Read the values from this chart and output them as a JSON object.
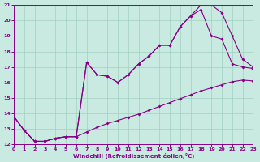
{
  "xlabel": "Windchill (Refroidissement éolien,°C)",
  "bg_color": "#c8eae0",
  "grid_color": "#a0cfc0",
  "line_color": "#880088",
  "xlim": [
    0,
    23
  ],
  "ylim": [
    12,
    21
  ],
  "xticks": [
    0,
    1,
    2,
    3,
    4,
    5,
    6,
    7,
    8,
    9,
    10,
    11,
    12,
    13,
    14,
    15,
    16,
    17,
    18,
    19,
    20,
    21,
    22,
    23
  ],
  "yticks": [
    12,
    13,
    14,
    15,
    16,
    17,
    18,
    19,
    20,
    21
  ],
  "line_bottom_x": [
    0,
    1,
    2,
    3,
    4,
    5,
    6,
    7,
    8,
    9,
    10,
    11,
    12,
    13,
    14,
    15,
    16,
    17,
    18,
    19,
    20,
    21,
    22,
    23
  ],
  "line_bottom_y": [
    13.8,
    12.9,
    12.2,
    12.2,
    12.4,
    12.5,
    12.5,
    12.8,
    13.1,
    13.35,
    13.55,
    13.75,
    13.95,
    14.2,
    14.45,
    14.7,
    14.95,
    15.2,
    15.45,
    15.65,
    15.85,
    16.05,
    16.15,
    16.1
  ],
  "line_mid_x": [
    0,
    1,
    2,
    3,
    4,
    5,
    6,
    7,
    8,
    9,
    10,
    11,
    12,
    13,
    14,
    15,
    16,
    17,
    18,
    19,
    20,
    21,
    22,
    23
  ],
  "line_mid_y": [
    13.8,
    12.9,
    12.2,
    12.2,
    12.4,
    12.5,
    12.5,
    17.3,
    16.5,
    16.4,
    16.0,
    16.5,
    17.2,
    17.7,
    18.4,
    18.4,
    19.6,
    20.3,
    20.7,
    19.0,
    18.8,
    17.2,
    17.0,
    16.9
  ],
  "line_top_x": [
    0,
    1,
    2,
    3,
    4,
    5,
    6,
    7,
    8,
    9,
    10,
    11,
    12,
    13,
    14,
    15,
    16,
    17,
    18,
    19,
    20,
    21,
    22,
    23
  ],
  "line_top_y": [
    13.8,
    12.9,
    12.2,
    12.2,
    12.4,
    12.5,
    12.5,
    17.3,
    16.5,
    16.4,
    16.0,
    16.5,
    17.2,
    17.7,
    18.4,
    18.4,
    19.6,
    20.3,
    21.0,
    21.0,
    20.5,
    19.0,
    17.5,
    17.0
  ]
}
